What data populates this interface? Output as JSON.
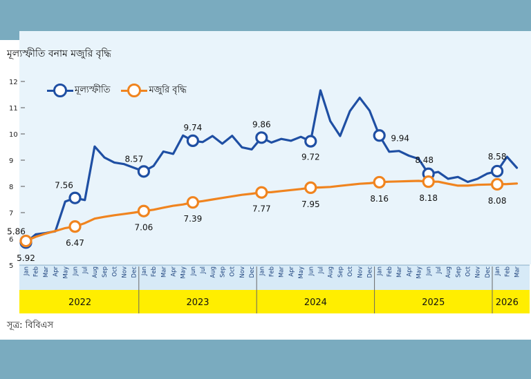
{
  "chart_data": {
    "type": "line",
    "title": "মূল্যস্ফীতি বনাম মজুরি বৃদ্ধি",
    "source": "সূত্র: বিবিএস",
    "ylim": [
      5,
      12
    ],
    "yticks": [
      "12",
      "11",
      "10",
      "9",
      "8",
      "7",
      "6",
      "5"
    ],
    "months": [
      "Jan",
      "Feb",
      "Mar",
      "Apr",
      "May",
      "Jun",
      "Jul",
      "Aug",
      "Sep",
      "Oct",
      "Nov",
      "Dec"
    ],
    "month_count": 51,
    "years": [
      "2022",
      "2023",
      "2024",
      "2025",
      "2026"
    ],
    "year_month_spans": [
      12,
      12,
      12,
      12,
      3
    ],
    "colors": {
      "inflation": "#1f4fa3",
      "wage": "#f0841f",
      "year_band": "#ffee00",
      "month_band": "#d7eaf7"
    },
    "legend": {
      "placement": "top-left"
    },
    "series": [
      {
        "key": "inflation",
        "name": "মূল্যস্ফীতি",
        "values": [
          5.86,
          6.17,
          6.22,
          6.29,
          7.42,
          7.56,
          7.48,
          9.52,
          9.1,
          8.91,
          8.85,
          8.71,
          8.57,
          8.78,
          9.33,
          9.24,
          9.94,
          9.74,
          9.69,
          9.92,
          9.63,
          9.93,
          9.49,
          9.41,
          9.86,
          9.67,
          9.81,
          9.74,
          9.89,
          9.72,
          11.66,
          10.49,
          9.92,
          10.87,
          11.38,
          10.89,
          9.94,
          9.32,
          9.35,
          9.17,
          9.05,
          8.48,
          8.55,
          8.29,
          8.36,
          8.17,
          8.29,
          8.49,
          8.58,
          9.13,
          8.71
        ],
        "markers": [
          {
            "index": 0,
            "label": "5.86"
          },
          {
            "index": 5,
            "label": "7.56"
          },
          {
            "index": 12,
            "label": "8.57"
          },
          {
            "index": 17,
            "label": "9.74"
          },
          {
            "index": 24,
            "label": "9.86"
          },
          {
            "index": 29,
            "label": "9.72"
          },
          {
            "index": 36,
            "label": "9.94"
          },
          {
            "index": 41,
            "label": "8.48"
          },
          {
            "index": 48,
            "label": "8.58"
          }
        ]
      },
      {
        "key": "wage",
        "name": "মজুরি বৃদ্ধি",
        "values": [
          5.92,
          6.08,
          6.2,
          6.3,
          6.41,
          6.47,
          6.6,
          6.77,
          6.84,
          6.9,
          6.95,
          7.0,
          7.06,
          7.11,
          7.19,
          7.26,
          7.31,
          7.39,
          7.44,
          7.5,
          7.56,
          7.62,
          7.68,
          7.72,
          7.77,
          7.78,
          7.82,
          7.86,
          7.9,
          7.95,
          7.96,
          7.98,
          8.02,
          8.06,
          8.1,
          8.12,
          8.16,
          8.18,
          8.19,
          8.2,
          8.21,
          8.18,
          8.18,
          8.1,
          8.03,
          8.03,
          8.06,
          8.07,
          8.08,
          8.09,
          8.11
        ],
        "markers": [
          {
            "index": 0,
            "label": "5.92"
          },
          {
            "index": 5,
            "label": "6.47"
          },
          {
            "index": 12,
            "label": "7.06"
          },
          {
            "index": 17,
            "label": "7.39"
          },
          {
            "index": 24,
            "label": "7.77"
          },
          {
            "index": 29,
            "label": "7.95"
          },
          {
            "index": 36,
            "label": "8.16"
          },
          {
            "index": 41,
            "label": "8.18"
          },
          {
            "index": 48,
            "label": "8.08"
          }
        ]
      }
    ]
  }
}
